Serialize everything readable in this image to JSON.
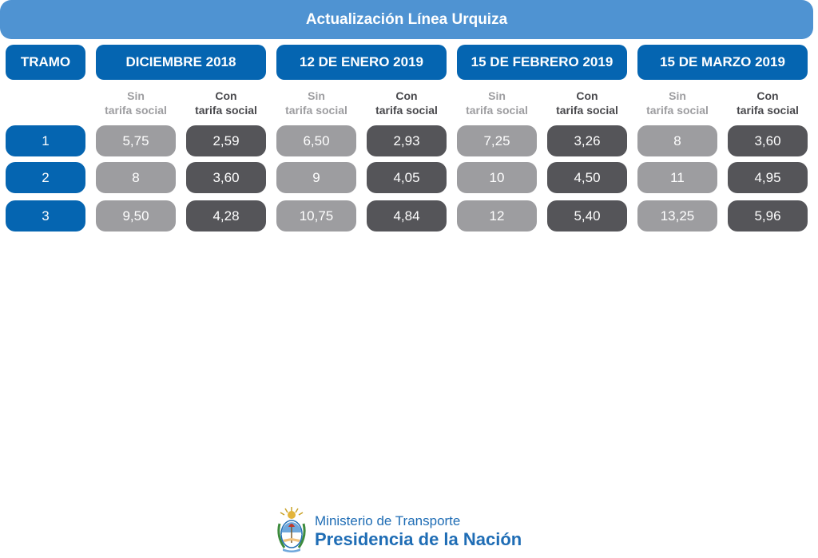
{
  "title": "Actualización Línea Urquiza",
  "tramo_label": "TRAMO",
  "periods": [
    {
      "label": "DICIEMBRE 2018"
    },
    {
      "label": "12 DE ENERO 2019"
    },
    {
      "label": "15 DE FEBRERO 2019"
    },
    {
      "label": "15 DE MARZO 2019"
    }
  ],
  "subheaders": {
    "sin": [
      "Sin",
      "tarifa social"
    ],
    "con": [
      "Con",
      "tarifa social"
    ]
  },
  "rows": [
    {
      "tramo": "1",
      "values": [
        [
          "5,75",
          "2,59"
        ],
        [
          "6,50",
          "2,93"
        ],
        [
          "7,25",
          "3,26"
        ],
        [
          "8",
          "3,60"
        ]
      ]
    },
    {
      "tramo": "2",
      "values": [
        [
          "8",
          "3,60"
        ],
        [
          "9",
          "4,05"
        ],
        [
          "10",
          "4,50"
        ],
        [
          "11",
          "4,95"
        ]
      ]
    },
    {
      "tramo": "3",
      "values": [
        [
          "9,50",
          "4,28"
        ],
        [
          "10,75",
          "4,84"
        ],
        [
          "12",
          "5,40"
        ],
        [
          "13,25",
          "5,96"
        ]
      ]
    }
  ],
  "footer": {
    "ministry": "Ministerio de Transporte",
    "presidency": "Presidencia de la Nación",
    "logo_icon": "coat-of-arms-icon"
  },
  "colors": {
    "banner": "#4f93d2",
    "header_blue": "#0565b1",
    "sin_gray": "#9d9da0",
    "con_dark": "#555559"
  }
}
